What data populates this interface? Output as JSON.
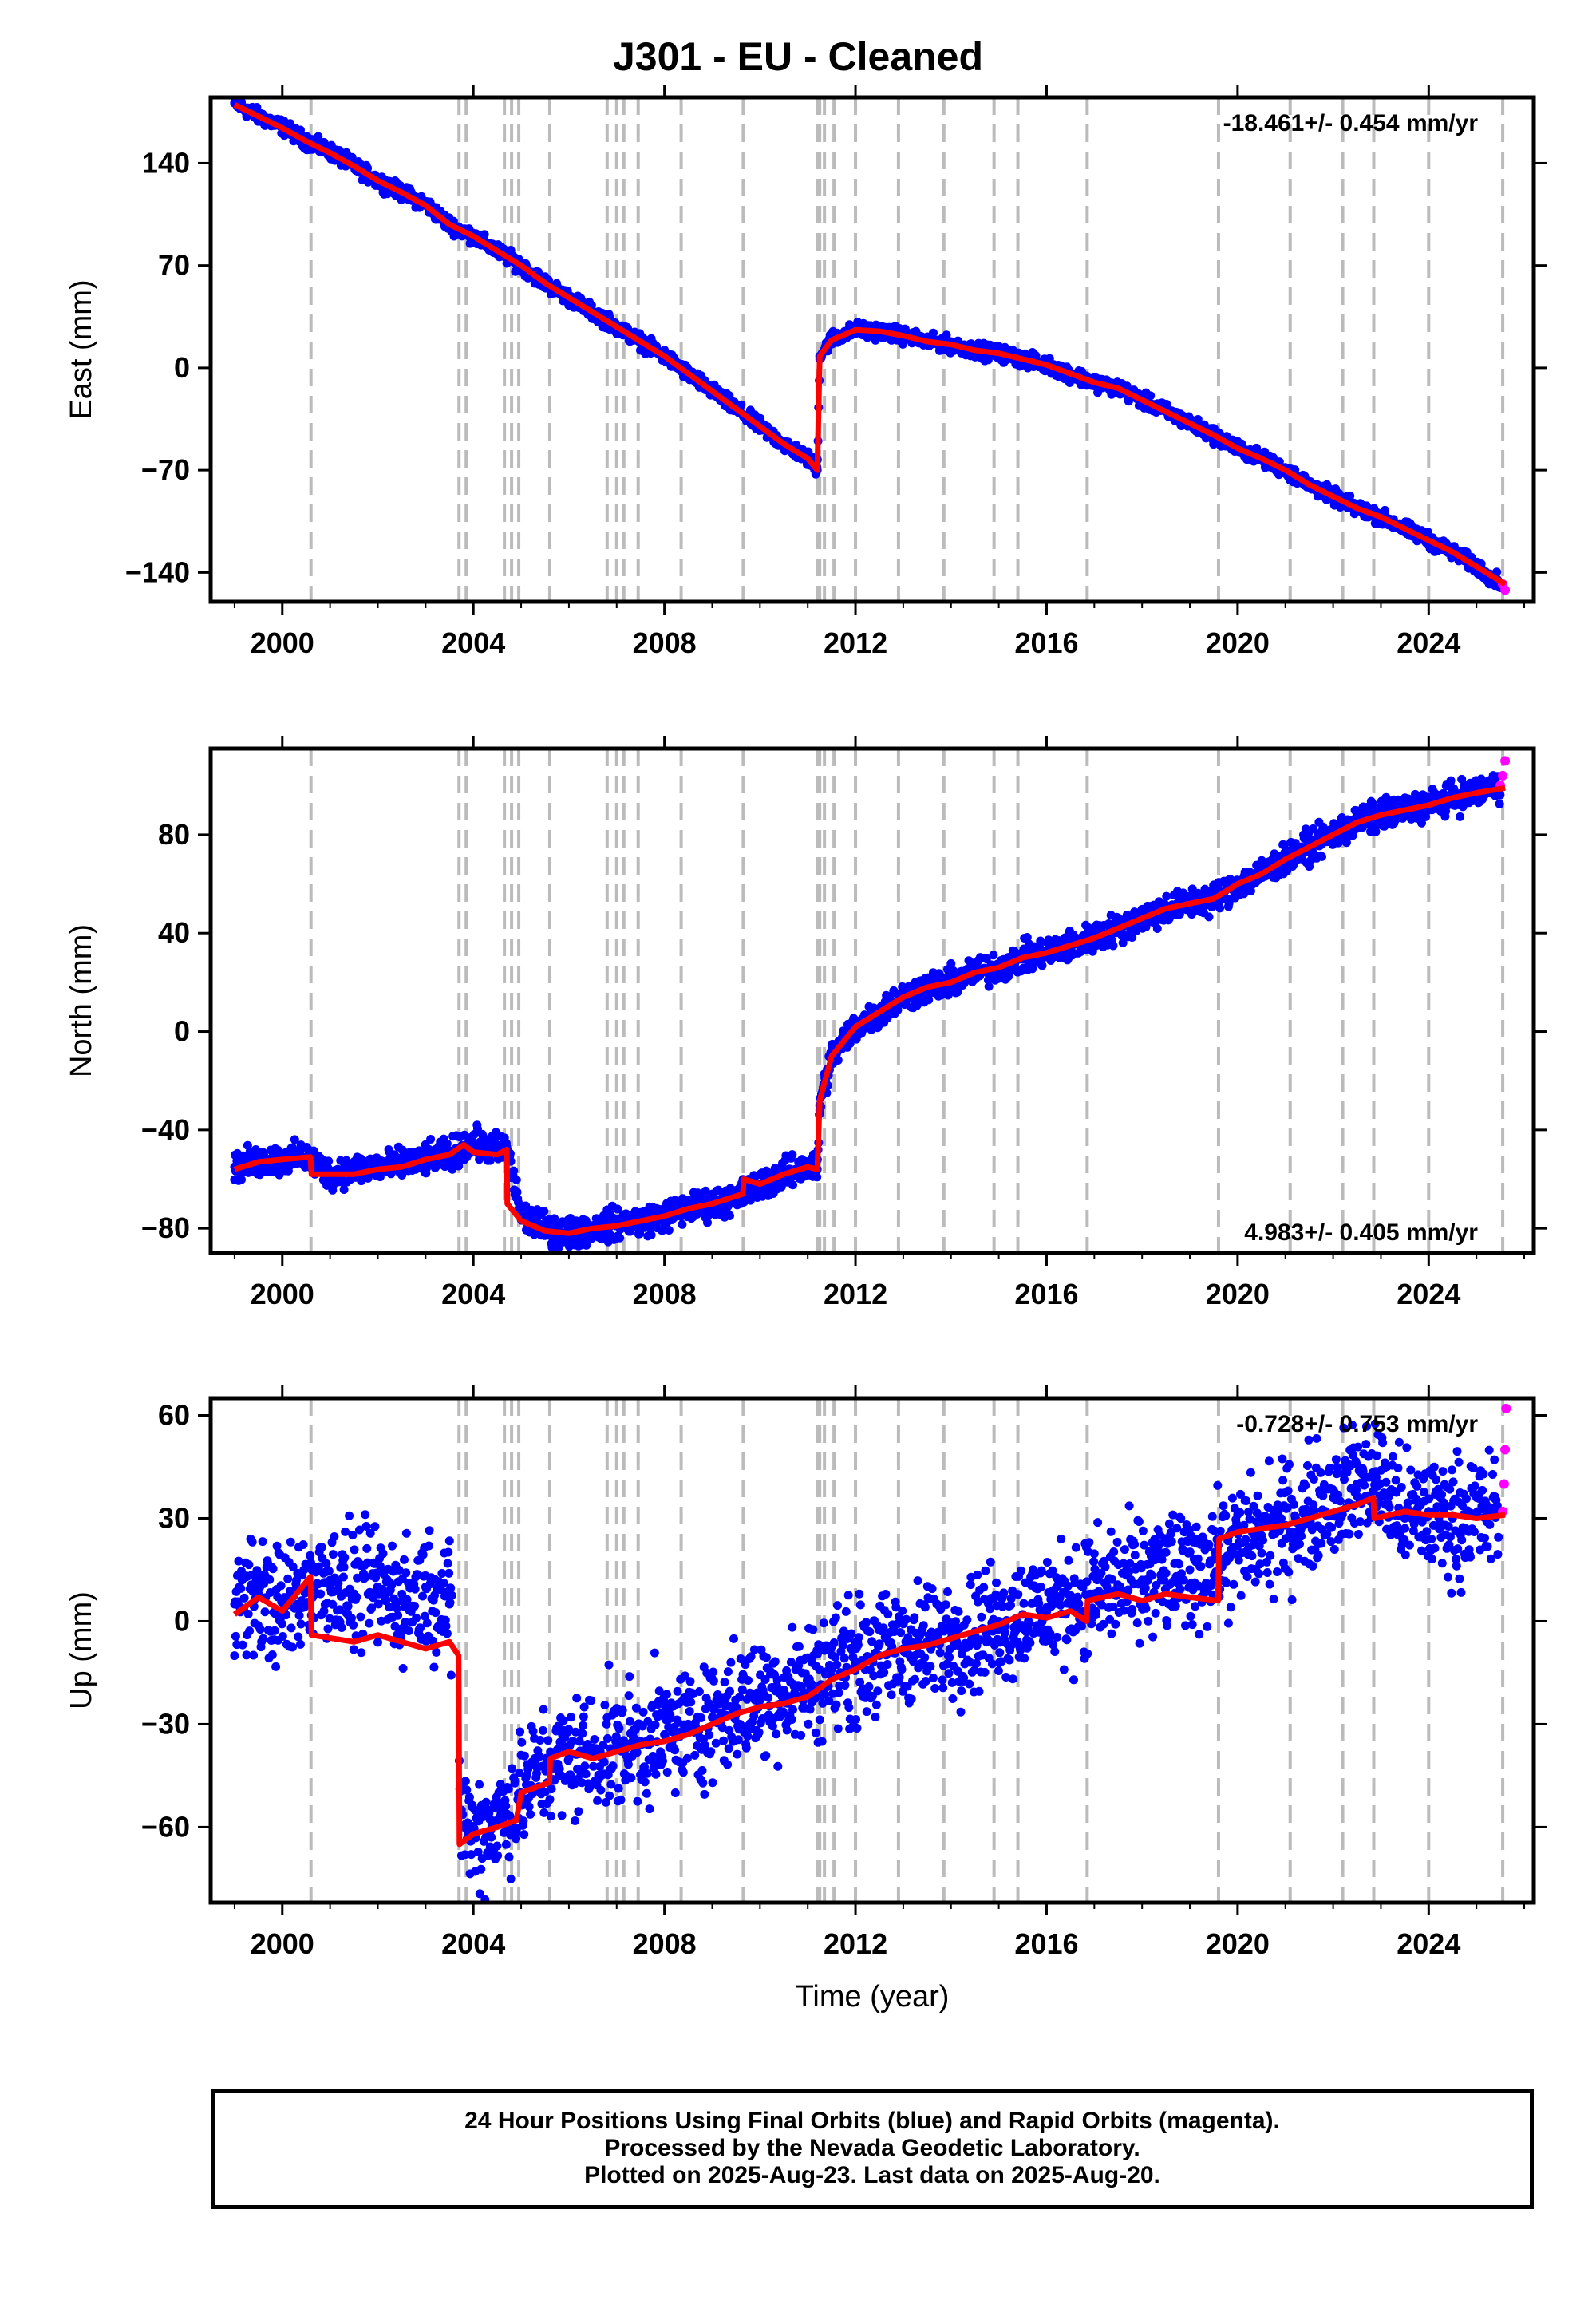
{
  "title": "J301  - EU - Cleaned",
  "colors": {
    "final_orbits": "#0000ff",
    "rapid_orbits": "#ff00ff",
    "model_fit": "#ff0000",
    "event_lines": "#bbbbbb",
    "frame": "#000000"
  },
  "footer": {
    "line1": "24 Hour Positions Using Final Orbits (blue) and Rapid Orbits (magenta).",
    "line2": "Processed by the Nevada Geodetic Laboratory.",
    "line3": "Plotted on 2025-Aug-23. Last data on 2025-Aug-20."
  },
  "chart_data": [
    {
      "type": "scatter",
      "panel": "east",
      "ylabel": "East (mm)",
      "xlabel": "",
      "xlim": [
        1998.5,
        2026.2
      ],
      "ylim": [
        -160,
        185
      ],
      "xticks": [
        2000,
        2004,
        2008,
        2012,
        2016,
        2020,
        2024
      ],
      "yticks": [
        -140,
        -70,
        0,
        70,
        140
      ],
      "rate_label": "-18.461+/- 0.454 mm/yr",
      "rate_label_position": "top-right",
      "event_lines": [
        2000.6,
        2003.7,
        2003.85,
        2004.65,
        2004.8,
        2004.95,
        2005.6,
        2006.8,
        2007.0,
        2007.15,
        2007.45,
        2008.35,
        2009.65,
        2011.2,
        2011.25,
        2011.35,
        2011.55,
        2012.0,
        2012.9,
        2013.85,
        2014.9,
        2015.4,
        2016.85,
        2019.6,
        2021.1,
        2022.2,
        2022.85,
        2024.0,
        2025.55
      ],
      "series": [
        {
          "role": "final_orbits_daily_positions",
          "x": [
            1999.0,
            1999.5,
            2000.0,
            2000.5,
            2001.0,
            2001.5,
            2002.0,
            2002.5,
            2003.0,
            2003.5,
            2004.0,
            2004.5,
            2005.0,
            2005.5,
            2006.0,
            2006.5,
            2007.0,
            2007.5,
            2008.0,
            2008.5,
            2009.0,
            2009.5,
            2010.0,
            2010.5,
            2011.0,
            2011.2,
            2011.25,
            2011.5,
            2012.0,
            2012.5,
            2013.0,
            2013.5,
            2014.0,
            2014.5,
            2015.0,
            2015.5,
            2016.0,
            2016.5,
            2017.0,
            2017.5,
            2018.0,
            2018.5,
            2019.0,
            2019.5,
            2020.0,
            2020.5,
            2021.0,
            2021.5,
            2022.0,
            2022.5,
            2023.0,
            2023.5,
            2024.0,
            2024.5,
            2025.0,
            2025.5
          ],
          "y": [
            181,
            172,
            165,
            155,
            148,
            138,
            128,
            120,
            112,
            98,
            90,
            80,
            70,
            58,
            48,
            38,
            28,
            18,
            8,
            -4,
            -16,
            -28,
            -40,
            -52,
            -62,
            -70,
            8,
            20,
            26,
            25,
            22,
            18,
            16,
            12,
            10,
            6,
            2,
            -4,
            -10,
            -14,
            -22,
            -30,
            -38,
            -46,
            -55,
            -62,
            -70,
            -80,
            -88,
            -96,
            -102,
            -110,
            -118,
            -126,
            -136,
            -147
          ]
        },
        {
          "role": "rapid_orbits_daily_positions",
          "x": [
            2025.55,
            2025.6
          ],
          "y": [
            -148,
            -152
          ]
        },
        {
          "role": "model_fit",
          "x": [
            1999.0,
            1999.5,
            2000.0,
            2000.5,
            2001.0,
            2001.5,
            2002.0,
            2002.5,
            2003.0,
            2003.5,
            2004.0,
            2004.5,
            2005.0,
            2005.5,
            2006.0,
            2006.5,
            2007.0,
            2007.5,
            2008.0,
            2008.5,
            2009.0,
            2009.5,
            2010.0,
            2010.5,
            2011.0,
            2011.2,
            2011.25,
            2011.5,
            2012.0,
            2012.5,
            2013.0,
            2013.5,
            2014.0,
            2014.5,
            2015.0,
            2015.5,
            2016.0,
            2016.5,
            2017.0,
            2017.5,
            2018.0,
            2018.5,
            2019.0,
            2019.5,
            2020.0,
            2020.5,
            2021.0,
            2021.5,
            2022.0,
            2022.5,
            2023.0,
            2023.5,
            2024.0,
            2024.5,
            2025.0,
            2025.6
          ],
          "y": [
            180,
            172,
            164,
            155,
            147,
            138,
            128,
            120,
            111,
            98,
            90,
            80,
            70,
            58,
            48,
            38,
            28,
            18,
            8,
            -4,
            -16,
            -28,
            -40,
            -52,
            -62,
            -70,
            8,
            19,
            26,
            25,
            22,
            18,
            16,
            12,
            10,
            6,
            2,
            -4,
            -10,
            -14,
            -22,
            -30,
            -38,
            -46,
            -55,
            -62,
            -70,
            -80,
            -88,
            -96,
            -102,
            -110,
            -118,
            -126,
            -136,
            -148
          ]
        }
      ]
    },
    {
      "type": "scatter",
      "panel": "north",
      "ylabel": "North (mm)",
      "xlabel": "",
      "xlim": [
        1998.5,
        2026.2
      ],
      "ylim": [
        -90,
        115
      ],
      "xticks": [
        2000,
        2004,
        2008,
        2012,
        2016,
        2020,
        2024
      ],
      "yticks": [
        -80,
        -40,
        0,
        40,
        80
      ],
      "rate_label": "4.983+/- 0.405 mm/yr",
      "rate_label_position": "bottom-right",
      "event_lines": [
        2000.6,
        2003.7,
        2003.85,
        2004.65,
        2004.8,
        2004.95,
        2005.6,
        2006.8,
        2007.0,
        2007.15,
        2007.45,
        2008.35,
        2009.65,
        2011.2,
        2011.25,
        2011.35,
        2011.55,
        2012.0,
        2012.9,
        2013.85,
        2014.9,
        2015.4,
        2016.85,
        2019.6,
        2021.1,
        2022.2,
        2022.85,
        2024.0,
        2025.55
      ],
      "series": [
        {
          "role": "final_orbits_daily_positions",
          "x": [
            1999.0,
            1999.5,
            2000.0,
            2000.5,
            2001.0,
            2001.5,
            2002.0,
            2002.5,
            2003.0,
            2003.5,
            2004.0,
            2004.5,
            2004.7,
            2005.0,
            2005.5,
            2006.0,
            2006.5,
            2007.0,
            2007.5,
            2008.0,
            2008.5,
            2009.0,
            2009.5,
            2010.0,
            2010.5,
            2011.0,
            2011.2,
            2011.25,
            2011.5,
            2012.0,
            2012.5,
            2013.0,
            2013.5,
            2014.0,
            2014.5,
            2015.0,
            2015.5,
            2016.0,
            2016.5,
            2017.0,
            2017.5,
            2018.0,
            2018.5,
            2019.0,
            2019.5,
            2020.0,
            2020.5,
            2021.0,
            2021.5,
            2022.0,
            2022.5,
            2023.0,
            2023.5,
            2024.0,
            2024.5,
            2025.0,
            2025.5
          ],
          "y": [
            -55,
            -53,
            -52,
            -51,
            -58,
            -56,
            -55,
            -54,
            -52,
            -50,
            -45,
            -48,
            -47,
            -75,
            -80,
            -82,
            -80,
            -78,
            -77,
            -75,
            -72,
            -70,
            -68,
            -62,
            -58,
            -55,
            -56,
            -30,
            -10,
            2,
            8,
            14,
            18,
            20,
            24,
            26,
            30,
            32,
            35,
            38,
            42,
            46,
            50,
            52,
            54,
            60,
            64,
            70,
            75,
            80,
            85,
            88,
            90,
            92,
            95,
            97,
            100
          ]
        },
        {
          "role": "rapid_orbits_daily_positions",
          "x": [
            2025.5,
            2025.55,
            2025.6
          ],
          "y": [
            100,
            104,
            110
          ]
        },
        {
          "role": "model_fit",
          "x": [
            1999.0,
            1999.5,
            2000.0,
            2000.59,
            2000.61,
            2001.5,
            2002.0,
            2002.5,
            2003.0,
            2003.5,
            2003.8,
            2004.0,
            2004.5,
            2004.7,
            2004.71,
            2005.0,
            2005.5,
            2006.0,
            2006.5,
            2007.0,
            2007.5,
            2008.0,
            2008.5,
            2009.0,
            2009.64,
            2009.66,
            2010.0,
            2010.5,
            2011.0,
            2011.2,
            2011.25,
            2011.5,
            2012.0,
            2012.5,
            2013.0,
            2013.5,
            2014.0,
            2014.5,
            2015.0,
            2015.5,
            2016.0,
            2016.5,
            2017.0,
            2017.5,
            2018.0,
            2018.5,
            2019.0,
            2019.5,
            2020.0,
            2020.5,
            2021.0,
            2021.5,
            2022.0,
            2022.5,
            2023.0,
            2023.5,
            2024.0,
            2024.5,
            2025.0,
            2025.6
          ],
          "y": [
            -56,
            -53,
            -52,
            -51,
            -58,
            -58,
            -56,
            -55,
            -52,
            -50,
            -46,
            -49,
            -50,
            -48,
            -70,
            -77,
            -81,
            -82,
            -80,
            -79,
            -77,
            -75,
            -72,
            -70,
            -66,
            -60,
            -62,
            -58,
            -55,
            -56,
            -28,
            -10,
            2,
            8,
            14,
            18,
            20,
            24,
            26,
            30,
            32,
            35,
            38,
            42,
            46,
            50,
            52,
            54,
            60,
            64,
            70,
            75,
            80,
            85,
            88,
            90,
            92,
            95,
            97,
            99
          ]
        }
      ]
    },
    {
      "type": "scatter",
      "panel": "up",
      "ylabel": "Up (mm)",
      "xlabel": "Time (year)",
      "xlim": [
        1998.5,
        2026.2
      ],
      "ylim": [
        -82,
        65
      ],
      "xticks": [
        2000,
        2004,
        2008,
        2012,
        2016,
        2020,
        2024
      ],
      "yticks": [
        -60,
        -30,
        0,
        30,
        60
      ],
      "rate_label": "-0.728+/- 0.753 mm/yr",
      "rate_label_position": "top-right",
      "event_lines": [
        2000.6,
        2003.7,
        2003.85,
        2004.65,
        2004.8,
        2004.95,
        2005.6,
        2006.8,
        2007.0,
        2007.15,
        2007.45,
        2008.35,
        2009.65,
        2011.2,
        2011.25,
        2011.35,
        2011.55,
        2012.0,
        2012.9,
        2013.85,
        2014.9,
        2015.4,
        2016.85,
        2019.6,
        2021.1,
        2022.2,
        2022.85,
        2024.0,
        2025.55
      ],
      "series": [
        {
          "role": "final_orbits_daily_positions",
          "x": [
            1999.0,
            1999.5,
            2000.0,
            2000.5,
            2001.0,
            2001.5,
            2002.0,
            2002.5,
            2003.0,
            2003.5,
            2003.75,
            2004.0,
            2004.5,
            2005.0,
            2005.5,
            2006.0,
            2006.5,
            2007.0,
            2007.5,
            2008.0,
            2008.5,
            2009.0,
            2009.5,
            2010.0,
            2010.5,
            2011.0,
            2011.5,
            2012.0,
            2012.5,
            2013.0,
            2013.5,
            2014.0,
            2014.5,
            2015.0,
            2015.5,
            2016.0,
            2016.5,
            2017.0,
            2017.5,
            2018.0,
            2018.5,
            2019.0,
            2019.5,
            2020.0,
            2020.5,
            2021.0,
            2021.5,
            2022.0,
            2022.5,
            2022.9,
            2023.5,
            2024.0,
            2024.5,
            2025.0,
            2025.5
          ],
          "y": [
            5,
            8,
            3,
            10,
            12,
            8,
            10,
            6,
            10,
            5,
            -55,
            -62,
            -58,
            -50,
            -42,
            -40,
            -38,
            -37,
            -35,
            -33,
            -30,
            -28,
            -25,
            -23,
            -20,
            -18,
            -14,
            -12,
            -10,
            -8,
            -6,
            -5,
            -3,
            0,
            2,
            4,
            6,
            8,
            10,
            12,
            14,
            15,
            18,
            22,
            25,
            28,
            32,
            36,
            40,
            42,
            30,
            32,
            30,
            31,
            32
          ]
        },
        {
          "role": "rapid_orbits_daily_positions",
          "x": [
            2025.55,
            2025.58,
            2025.6,
            2025.62
          ],
          "y": [
            32,
            40,
            50,
            62
          ]
        },
        {
          "role": "model_fit",
          "x": [
            1999.0,
            1999.5,
            2000.0,
            2000.59,
            2000.61,
            2001.5,
            2002.0,
            2002.5,
            2003.0,
            2003.5,
            2003.69,
            2003.71,
            2004.0,
            2004.5,
            2004.9,
            2005.0,
            2005.59,
            2005.61,
            2006.0,
            2006.5,
            2007.0,
            2007.5,
            2008.0,
            2008.5,
            2009.0,
            2009.5,
            2010.0,
            2010.5,
            2011.0,
            2011.5,
            2012.0,
            2012.5,
            2013.0,
            2013.5,
            2014.0,
            2014.5,
            2015.0,
            2015.5,
            2016.0,
            2016.5,
            2016.84,
            2016.86,
            2017.5,
            2018.0,
            2018.5,
            2019.0,
            2019.59,
            2019.61,
            2020.0,
            2020.5,
            2021.0,
            2021.5,
            2022.0,
            2022.5,
            2022.84,
            2022.86,
            2023.5,
            2024.0,
            2024.5,
            2025.0,
            2025.6
          ],
          "y": [
            2,
            7,
            3,
            13,
            -4,
            -6,
            -4,
            -6,
            -8,
            -6,
            -10,
            -65,
            -62,
            -60,
            -58,
            -50,
            -47,
            -40,
            -38,
            -40,
            -38,
            -36,
            -35,
            -33,
            -30,
            -27,
            -25,
            -24,
            -22,
            -17,
            -14,
            -10,
            -8,
            -7,
            -5,
            -3,
            -1,
            2,
            1,
            3,
            0,
            6,
            8,
            6,
            8,
            7,
            6,
            24,
            26,
            27,
            28,
            30,
            32,
            34,
            36,
            30,
            32,
            31,
            31,
            30,
            31
          ]
        }
      ]
    }
  ]
}
